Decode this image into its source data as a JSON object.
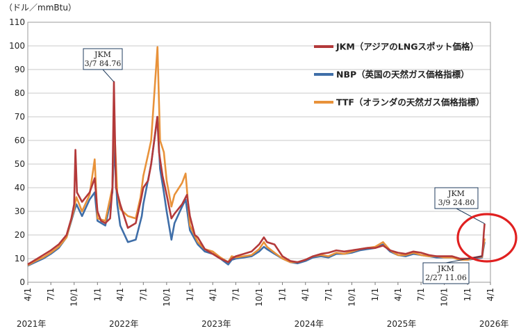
{
  "chart_data": {
    "type": "line",
    "unit_label": "（ドル／mmBtu）",
    "ylim": [
      0,
      110
    ],
    "yticks": [
      0,
      10,
      20,
      30,
      40,
      50,
      60,
      70,
      80,
      90,
      100,
      110
    ],
    "xlim": [
      "2021-04-01",
      "2026-04-01"
    ],
    "month_ticks": [
      {
        "date": "2021-04-01",
        "label": "4/1"
      },
      {
        "date": "2021-07-01",
        "label": "7/1"
      },
      {
        "date": "2021-10-01",
        "label": "10/1"
      },
      {
        "date": "2022-01-01",
        "label": "1/1"
      },
      {
        "date": "2022-04-01",
        "label": "4/1"
      },
      {
        "date": "2022-07-01",
        "label": "7/1"
      },
      {
        "date": "2022-10-01",
        "label": "10/1"
      },
      {
        "date": "2023-01-01",
        "label": "1/1"
      },
      {
        "date": "2023-04-01",
        "label": "4/1"
      },
      {
        "date": "2023-07-01",
        "label": "7/1"
      },
      {
        "date": "2023-10-01",
        "label": "10/1"
      },
      {
        "date": "2024-01-01",
        "label": "1/1"
      },
      {
        "date": "2024-04-01",
        "label": "4/1"
      },
      {
        "date": "2024-07-01",
        "label": "7/1"
      },
      {
        "date": "2024-10-01",
        "label": "10/1"
      },
      {
        "date": "2025-01-01",
        "label": "1/1"
      },
      {
        "date": "2025-04-01",
        "label": "4/1"
      },
      {
        "date": "2025-07-01",
        "label": "7/1"
      },
      {
        "date": "2025-10-01",
        "label": "10/1"
      },
      {
        "date": "2026-01-01",
        "label": "1/1"
      },
      {
        "date": "2026-04-01",
        "label": "4/1"
      }
    ],
    "year_labels": [
      {
        "date": "2021-04-15",
        "label": "2021年"
      },
      {
        "date": "2022-04-15",
        "label": "2022年"
      },
      {
        "date": "2023-04-15",
        "label": "2023年"
      },
      {
        "date": "2024-04-15",
        "label": "2024年"
      },
      {
        "date": "2025-04-15",
        "label": "2025年"
      },
      {
        "date": "2026-04-15",
        "label": "2026年"
      }
    ],
    "grid": true,
    "legend_position": "top-right",
    "series": [
      {
        "name": "JKM（アジアのLNGスポット価格）",
        "color": "#b3393a",
        "points": [
          [
            "2021-04-01",
            7.6
          ],
          [
            "2021-05-01",
            9.5
          ],
          [
            "2021-06-01",
            11.5
          ],
          [
            "2021-07-01",
            13.5
          ],
          [
            "2021-08-01",
            16
          ],
          [
            "2021-09-01",
            20
          ],
          [
            "2021-09-20",
            27
          ],
          [
            "2021-10-01",
            33
          ],
          [
            "2021-10-06",
            56
          ],
          [
            "2021-10-12",
            38
          ],
          [
            "2021-11-01",
            34
          ],
          [
            "2021-12-01",
            38
          ],
          [
            "2021-12-21",
            44
          ],
          [
            "2022-01-01",
            30
          ],
          [
            "2022-01-15",
            26
          ],
          [
            "2022-02-01",
            25
          ],
          [
            "2022-02-20",
            27
          ],
          [
            "2022-03-01",
            40
          ],
          [
            "2022-03-07",
            84.76
          ],
          [
            "2022-03-15",
            40
          ],
          [
            "2022-04-01",
            33
          ],
          [
            "2022-05-01",
            23
          ],
          [
            "2022-06-01",
            25
          ],
          [
            "2022-06-20",
            34
          ],
          [
            "2022-07-01",
            40
          ],
          [
            "2022-07-20",
            43
          ],
          [
            "2022-08-01",
            50
          ],
          [
            "2022-08-25",
            70
          ],
          [
            "2022-09-01",
            55
          ],
          [
            "2022-09-15",
            45
          ],
          [
            "2022-10-01",
            37
          ],
          [
            "2022-10-20",
            27
          ],
          [
            "2022-11-01",
            29
          ],
          [
            "2022-12-01",
            33
          ],
          [
            "2022-12-20",
            37
          ],
          [
            "2023-01-01",
            28
          ],
          [
            "2023-01-20",
            20
          ],
          [
            "2023-02-01",
            19
          ],
          [
            "2023-03-01",
            14
          ],
          [
            "2023-04-01",
            12
          ],
          [
            "2023-05-01",
            10
          ],
          [
            "2023-06-01",
            8.5
          ],
          [
            "2023-06-15",
            10
          ],
          [
            "2023-07-01",
            11
          ],
          [
            "2023-08-01",
            12
          ],
          [
            "2023-09-01",
            13
          ],
          [
            "2023-10-01",
            16
          ],
          [
            "2023-10-20",
            19
          ],
          [
            "2023-11-01",
            17
          ],
          [
            "2023-12-01",
            16
          ],
          [
            "2024-01-01",
            11
          ],
          [
            "2024-02-01",
            9
          ],
          [
            "2024-03-01",
            8.5
          ],
          [
            "2024-04-01",
            9.5
          ],
          [
            "2024-05-01",
            11
          ],
          [
            "2024-06-01",
            12
          ],
          [
            "2024-07-01",
            12.5
          ],
          [
            "2024-08-01",
            13.5
          ],
          [
            "2024-09-01",
            13
          ],
          [
            "2024-10-01",
            13.5
          ],
          [
            "2024-11-01",
            14
          ],
          [
            "2024-12-01",
            14.5
          ],
          [
            "2025-01-01",
            14.5
          ],
          [
            "2025-02-01",
            15.5
          ],
          [
            "2025-03-01",
            13.5
          ],
          [
            "2025-04-01",
            12.5
          ],
          [
            "2025-05-01",
            12
          ],
          [
            "2025-06-01",
            13
          ],
          [
            "2025-07-01",
            12.5
          ],
          [
            "2025-08-01",
            11.5
          ],
          [
            "2025-09-01",
            11
          ],
          [
            "2025-10-01",
            11
          ],
          [
            "2025-11-01",
            11
          ],
          [
            "2025-12-01",
            10
          ],
          [
            "2026-01-01",
            10
          ],
          [
            "2026-02-01",
            10.5
          ],
          [
            "2026-02-27",
            11.06
          ],
          [
            "2026-03-03",
            16
          ],
          [
            "2026-03-06",
            21
          ],
          [
            "2026-03-09",
            24.8
          ]
        ]
      },
      {
        "name": "NBP（英国の天然ガス価格指標）",
        "color": "#3f6ea8",
        "points": [
          [
            "2021-04-01",
            7
          ],
          [
            "2021-05-01",
            8.5
          ],
          [
            "2021-06-01",
            10
          ],
          [
            "2021-07-01",
            12
          ],
          [
            "2021-08-01",
            14.5
          ],
          [
            "2021-09-01",
            19
          ],
          [
            "2021-10-01",
            30
          ],
          [
            "2021-10-10",
            33
          ],
          [
            "2021-11-01",
            28
          ],
          [
            "2021-12-01",
            35
          ],
          [
            "2021-12-21",
            38
          ],
          [
            "2022-01-01",
            26
          ],
          [
            "2022-02-01",
            24
          ],
          [
            "2022-03-01",
            38
          ],
          [
            "2022-03-08",
            58
          ],
          [
            "2022-03-20",
            33
          ],
          [
            "2022-04-01",
            24
          ],
          [
            "2022-05-01",
            17
          ],
          [
            "2022-06-01",
            18
          ],
          [
            "2022-06-25",
            28
          ],
          [
            "2022-07-01",
            33
          ],
          [
            "2022-08-01",
            50
          ],
          [
            "2022-08-26",
            70
          ],
          [
            "2022-09-05",
            48
          ],
          [
            "2022-09-20",
            38
          ],
          [
            "2022-10-01",
            30
          ],
          [
            "2022-10-20",
            18
          ],
          [
            "2022-11-01",
            25
          ],
          [
            "2022-12-01",
            32
          ],
          [
            "2022-12-15",
            35
          ],
          [
            "2023-01-01",
            22
          ],
          [
            "2023-02-01",
            16
          ],
          [
            "2023-03-01",
            13
          ],
          [
            "2023-04-01",
            12
          ],
          [
            "2023-05-01",
            10
          ],
          [
            "2023-06-01",
            7.5
          ],
          [
            "2023-06-15",
            9.5
          ],
          [
            "2023-07-01",
            10
          ],
          [
            "2023-08-01",
            10.5
          ],
          [
            "2023-09-01",
            11
          ],
          [
            "2023-10-01",
            13
          ],
          [
            "2023-10-20",
            15
          ],
          [
            "2023-11-01",
            14
          ],
          [
            "2023-12-01",
            12
          ],
          [
            "2024-01-01",
            10
          ],
          [
            "2024-02-01",
            8.5
          ],
          [
            "2024-03-01",
            8
          ],
          [
            "2024-04-01",
            9
          ],
          [
            "2024-05-01",
            10.5
          ],
          [
            "2024-06-01",
            11
          ],
          [
            "2024-07-01",
            10.5
          ],
          [
            "2024-08-01",
            12
          ],
          [
            "2024-09-01",
            12
          ],
          [
            "2024-10-01",
            12.5
          ],
          [
            "2024-11-01",
            13.5
          ],
          [
            "2024-12-01",
            14
          ],
          [
            "2025-01-01",
            14.5
          ],
          [
            "2025-02-01",
            16
          ],
          [
            "2025-03-01",
            13
          ],
          [
            "2025-04-01",
            11.5
          ],
          [
            "2025-05-01",
            11
          ],
          [
            "2025-06-01",
            12
          ],
          [
            "2025-07-01",
            11.5
          ],
          [
            "2025-08-01",
            11
          ],
          [
            "2025-09-01",
            10.5
          ],
          [
            "2025-10-01",
            10.5
          ],
          [
            "2025-11-01",
            10.5
          ],
          [
            "2025-12-01",
            9.5
          ],
          [
            "2026-01-01",
            9.5
          ],
          [
            "2026-02-01",
            10
          ],
          [
            "2026-02-27",
            10.5
          ],
          [
            "2026-03-04",
            14
          ],
          [
            "2026-03-09",
            17
          ]
        ]
      },
      {
        "name": "TTF（オランダの天然ガス価格指標）",
        "color": "#e8923a",
        "points": [
          [
            "2021-04-01",
            7.2
          ],
          [
            "2021-05-01",
            9
          ],
          [
            "2021-06-01",
            10.5
          ],
          [
            "2021-07-01",
            12.5
          ],
          [
            "2021-08-01",
            15
          ],
          [
            "2021-09-01",
            19
          ],
          [
            "2021-10-01",
            31
          ],
          [
            "2021-10-10",
            36
          ],
          [
            "2021-11-01",
            30
          ],
          [
            "2021-12-01",
            37
          ],
          [
            "2021-12-21",
            52
          ],
          [
            "2022-01-01",
            27
          ],
          [
            "2022-02-01",
            26
          ],
          [
            "2022-03-01",
            40
          ],
          [
            "2022-03-07",
            70
          ],
          [
            "2022-03-20",
            38
          ],
          [
            "2022-04-01",
            31
          ],
          [
            "2022-05-01",
            28
          ],
          [
            "2022-06-01",
            27
          ],
          [
            "2022-06-20",
            36
          ],
          [
            "2022-07-01",
            45
          ],
          [
            "2022-07-20",
            54
          ],
          [
            "2022-08-01",
            60
          ],
          [
            "2022-08-26",
            99.5
          ],
          [
            "2022-09-05",
            60
          ],
          [
            "2022-09-20",
            55
          ],
          [
            "2022-10-01",
            43
          ],
          [
            "2022-10-20",
            32
          ],
          [
            "2022-11-01",
            37
          ],
          [
            "2022-12-01",
            42
          ],
          [
            "2022-12-15",
            46
          ],
          [
            "2023-01-01",
            24
          ],
          [
            "2023-02-01",
            17
          ],
          [
            "2023-03-01",
            14
          ],
          [
            "2023-04-01",
            13
          ],
          [
            "2023-05-01",
            10.5
          ],
          [
            "2023-06-01",
            8.5
          ],
          [
            "2023-06-15",
            11
          ],
          [
            "2023-07-01",
            10.5
          ],
          [
            "2023-08-01",
            11
          ],
          [
            "2023-09-01",
            11.5
          ],
          [
            "2023-10-01",
            14
          ],
          [
            "2023-10-20",
            17
          ],
          [
            "2023-11-01",
            15
          ],
          [
            "2023-12-01",
            12.5
          ],
          [
            "2024-01-01",
            10
          ],
          [
            "2024-02-01",
            8.5
          ],
          [
            "2024-03-01",
            8.5
          ],
          [
            "2024-04-01",
            9.5
          ],
          [
            "2024-05-01",
            11
          ],
          [
            "2024-06-01",
            11.5
          ],
          [
            "2024-07-01",
            11
          ],
          [
            "2024-08-01",
            12.5
          ],
          [
            "2024-09-01",
            12
          ],
          [
            "2024-10-01",
            13
          ],
          [
            "2024-11-01",
            14
          ],
          [
            "2024-12-01",
            14.5
          ],
          [
            "2025-01-01",
            15
          ],
          [
            "2025-02-01",
            17
          ],
          [
            "2025-03-01",
            13.5
          ],
          [
            "2025-04-01",
            11.5
          ],
          [
            "2025-05-01",
            11.5
          ],
          [
            "2025-06-01",
            12.5
          ],
          [
            "2025-07-01",
            11.5
          ],
          [
            "2025-08-01",
            11
          ],
          [
            "2025-09-01",
            11
          ],
          [
            "2025-10-01",
            10.5
          ],
          [
            "2025-11-01",
            10.5
          ],
          [
            "2025-12-01",
            9.5
          ],
          [
            "2026-01-01",
            9.5
          ],
          [
            "2026-02-01",
            10.5
          ],
          [
            "2026-02-27",
            10.8
          ],
          [
            "2026-03-04",
            15
          ],
          [
            "2026-03-09",
            18.5
          ]
        ]
      }
    ],
    "annotations": [
      {
        "title": "JKM",
        "text": "3/7 84.76",
        "date": "2022-03-07",
        "value": 84.76
      },
      {
        "title": "JKM",
        "text": "3/9 24.80",
        "date": "2026-03-09",
        "value": 24.8
      },
      {
        "title": "JKM",
        "text": "2/27 11.06",
        "date": "2026-02-27",
        "value": 11.06
      }
    ],
    "highlight": {
      "shape": "ellipse",
      "color": "#e02020",
      "around": "2026-03 spike"
    }
  }
}
